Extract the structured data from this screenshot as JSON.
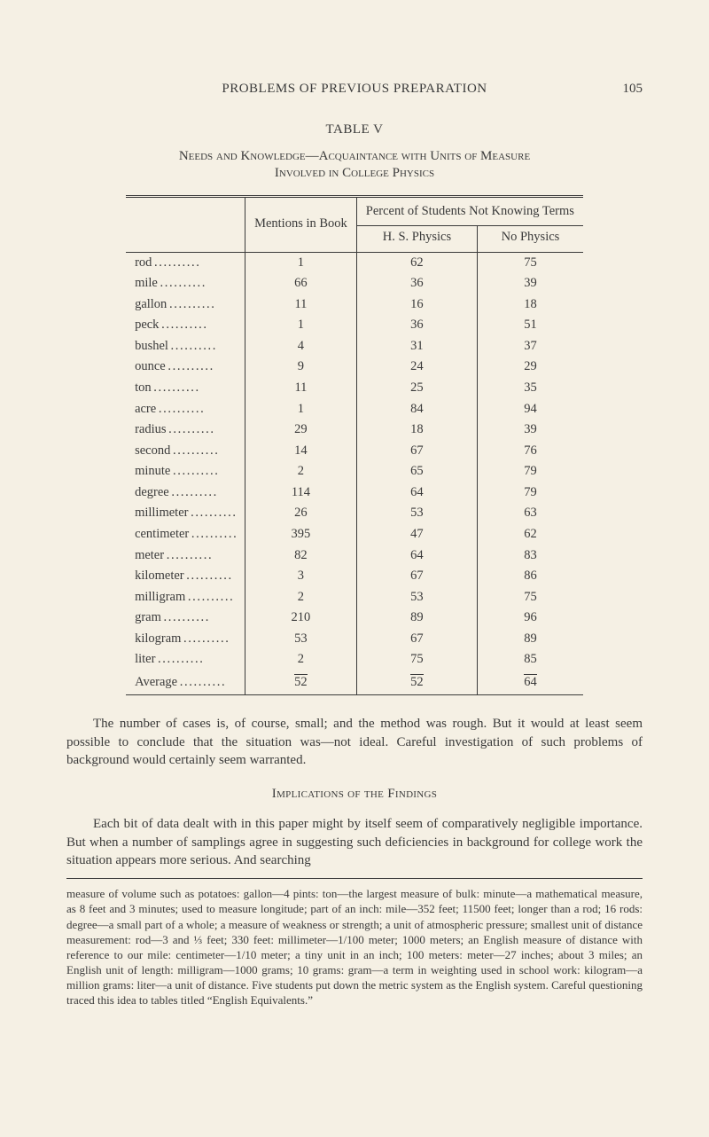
{
  "page": {
    "running_head": "PROBLEMS OF PREVIOUS PREPARATION",
    "page_number": "105"
  },
  "table": {
    "label": "TABLE V",
    "caption_line1": "Needs and Knowledge—Acquaintance with Units of Measure",
    "caption_line2": "Involved in College Physics",
    "col_mentions": "Mentions in Book",
    "col_percent_spanner": "Percent of Students Not Knowing Terms",
    "col_hs": "H. S. Physics",
    "col_nop": "No Physics",
    "rows": [
      {
        "label": "rod",
        "mentions": "1",
        "hs": "62",
        "nop": "75"
      },
      {
        "label": "mile",
        "mentions": "66",
        "hs": "36",
        "nop": "39"
      },
      {
        "label": "gallon",
        "mentions": "11",
        "hs": "16",
        "nop": "18"
      },
      {
        "label": "peck",
        "mentions": "1",
        "hs": "36",
        "nop": "51"
      },
      {
        "label": "bushel",
        "mentions": "4",
        "hs": "31",
        "nop": "37"
      },
      {
        "label": "ounce",
        "mentions": "9",
        "hs": "24",
        "nop": "29"
      },
      {
        "label": "ton",
        "mentions": "11",
        "hs": "25",
        "nop": "35"
      },
      {
        "label": "acre",
        "mentions": "1",
        "hs": "84",
        "nop": "94"
      },
      {
        "label": "radius",
        "mentions": "29",
        "hs": "18",
        "nop": "39"
      },
      {
        "label": "second",
        "mentions": "14",
        "hs": "67",
        "nop": "76"
      },
      {
        "label": "minute",
        "mentions": "2",
        "hs": "65",
        "nop": "79"
      },
      {
        "label": "degree",
        "mentions": "114",
        "hs": "64",
        "nop": "79"
      },
      {
        "label": "millimeter",
        "mentions": "26",
        "hs": "53",
        "nop": "63"
      },
      {
        "label": "centimeter",
        "mentions": "395",
        "hs": "47",
        "nop": "62"
      },
      {
        "label": "meter",
        "mentions": "82",
        "hs": "64",
        "nop": "83"
      },
      {
        "label": "kilometer",
        "mentions": "3",
        "hs": "67",
        "nop": "86"
      },
      {
        "label": "milligram",
        "mentions": "2",
        "hs": "53",
        "nop": "75"
      },
      {
        "label": "gram",
        "mentions": "210",
        "hs": "89",
        "nop": "96"
      },
      {
        "label": "kilogram",
        "mentions": "53",
        "hs": "67",
        "nop": "89"
      },
      {
        "label": "liter",
        "mentions": "2",
        "hs": "75",
        "nop": "85"
      }
    ],
    "average": {
      "label": "Average",
      "mentions": "52",
      "hs": "52",
      "nop": "64"
    }
  },
  "body": {
    "para1": "The number of cases is, of course, small; and the method was rough. But it would at least seem possible to conclude that the situation was—not ideal. Careful investigation of such problems of background would certainly seem warranted.",
    "section_head": "Implications of the Findings",
    "para2": "Each bit of data dealt with in this paper might by itself seem of comparatively negligible importance. But when a number of samplings agree in suggesting such deficiencies in background for college work the situation appears more serious. And searching"
  },
  "footnote": "measure of volume such as potatoes: gallon—4 pints: ton—the largest measure of bulk: minute—a mathematical measure, as 8 feet and 3 minutes; used to measure longitude; part of an inch: mile—352 feet; 11500 feet; longer than a rod; 16 rods: degree—a small part of a whole; a measure of weakness or strength; a unit of atmospheric pressure; smallest unit of distance measurement: rod—3 and ⅓ feet; 330 feet: millimeter—1/100 meter; 1000 meters; an English measure of distance with reference to our mile: centimeter—1/10 meter; a tiny unit in an inch; 100 meters: meter—27 inches; about 3 miles; an English unit of length: milligram—1000 grams; 10 grams: gram—a term in weighting used in school work: kilogram—a million grams: liter—a unit of distance. Five students put down the metric system as the English system. Careful questioning traced this idea to tables titled “English Equivalents.”"
}
